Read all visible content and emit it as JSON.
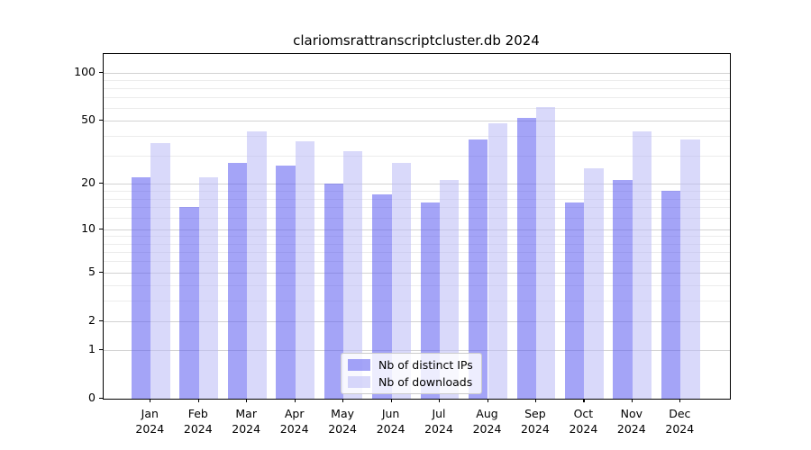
{
  "chart_data": {
    "type": "bar",
    "title": "clariomsrattranscriptcluster.db 2024",
    "categories": [
      "Jan",
      "Feb",
      "Mar",
      "Apr",
      "May",
      "Jun",
      "Jul",
      "Aug",
      "Sep",
      "Oct",
      "Nov",
      "Dec"
    ],
    "category_year": "2024",
    "series": [
      {
        "name": "Nb of distinct IPs",
        "color": "rgba(90,90,240,0.55)",
        "values": [
          22,
          14,
          27,
          26,
          20,
          17,
          15,
          38,
          52,
          15,
          21,
          18
        ]
      },
      {
        "name": "Nb of downloads",
        "color": "rgba(185,185,245,0.55)",
        "values": [
          36,
          22,
          43,
          37,
          32,
          27,
          21,
          48,
          61,
          25,
          43,
          38
        ]
      }
    ],
    "xlabel": "",
    "ylabel": "",
    "yscale": "log1p",
    "yticks": [
      0,
      1,
      2,
      5,
      10,
      20,
      50,
      100
    ],
    "minor_yticks": [
      3,
      4,
      6,
      7,
      8,
      9,
      12,
      14,
      16,
      18,
      30,
      40,
      60,
      70,
      80,
      90
    ],
    "ylim": [
      0,
      130
    ],
    "grid": "horizontal-major-and-minor",
    "legend_position": "bottom-center"
  },
  "colors": {
    "bar_distinct_ips": "rgba(90,90,240,0.55)",
    "bar_downloads": "rgba(185,185,245,0.55)",
    "major_grid": "#d2d2d2",
    "minor_grid": "#ececec",
    "spine": "#000000",
    "legend_border": "#cccccc",
    "legend_background": "rgba(255,255,255,0.8)"
  }
}
